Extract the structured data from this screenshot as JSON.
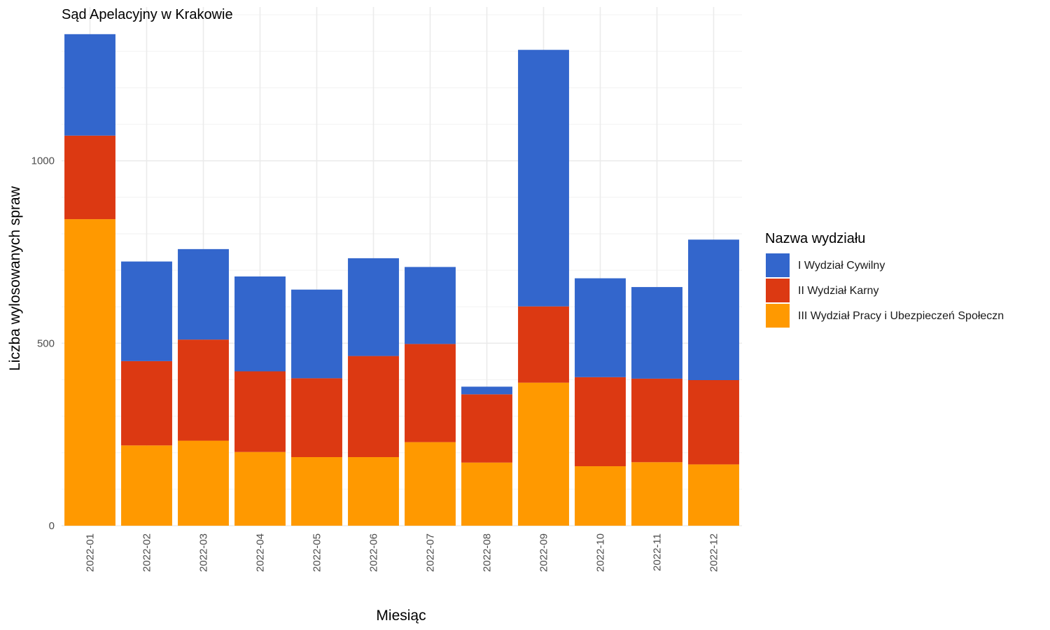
{
  "chart_data": {
    "type": "bar",
    "stacked": true,
    "title": "Sąd Apelacyjny w Krakowie",
    "xlabel": "Miesiąc",
    "ylabel": "Liczba wylosowanych spraw",
    "ylim": [
      0,
      1400
    ],
    "yticks": [
      "0",
      "500",
      "1000"
    ],
    "grid": true,
    "legend": {
      "title": "Nazwa wydziału",
      "position": "right"
    },
    "categories": [
      "2022-01",
      "2022-02",
      "2022-03",
      "2022-04",
      "2022-05",
      "2022-06",
      "2022-07",
      "2022-08",
      "2022-09",
      "2022-10",
      "2022-11",
      "2022-12"
    ],
    "series": [
      {
        "name": "III Wydział Pracy i Ubezpieczeń Społeczn",
        "color": "#ff9900",
        "values": [
          840,
          220,
          233,
          202,
          188,
          188,
          229,
          173,
          392,
          163,
          174,
          168
        ]
      },
      {
        "name": "II Wydział Karny",
        "color": "#dc3912",
        "values": [
          229,
          231,
          277,
          221,
          216,
          277,
          269,
          187,
          209,
          244,
          229,
          231
        ]
      },
      {
        "name": "I Wydział Cywilny",
        "color": "#3366cc",
        "values": [
          278,
          273,
          248,
          260,
          243,
          268,
          211,
          21,
          703,
          271,
          251,
          385
        ]
      }
    ]
  }
}
